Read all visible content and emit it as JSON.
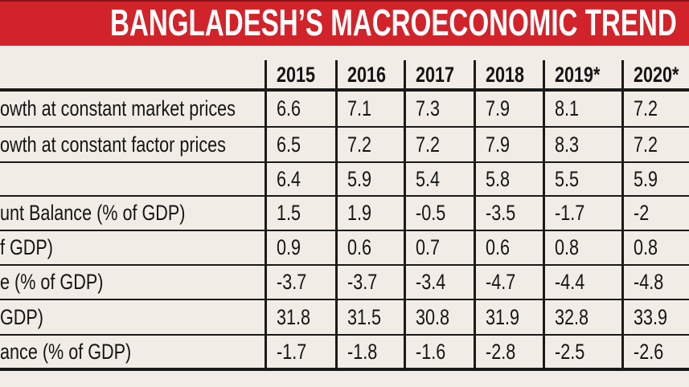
{
  "title": "BANGLADESH’S MACROECONOMIC TREND",
  "colors": {
    "banner": "#d2232a",
    "background": "#f1ede6",
    "text": "#151515"
  },
  "chart_data": {
    "type": "table",
    "columns": [
      "2015",
      "2016",
      "2017",
      "2018",
      "2019*",
      "2020*"
    ],
    "rows": [
      {
        "label": "owth at constant market prices",
        "values": [
          "6.6",
          "7.1",
          "7.3",
          "7.9",
          "8.1",
          "7.2"
        ]
      },
      {
        "label": "owth at constant factor prices",
        "values": [
          "6.5",
          "7.2",
          "7.2",
          "7.9",
          "8.3",
          "7.2"
        ]
      },
      {
        "label": "",
        "values": [
          "6.4",
          "5.9",
          "5.4",
          "5.8",
          "5.5",
          "5.9"
        ]
      },
      {
        "label": "unt Balance (% of GDP)",
        "values": [
          "1.5",
          "1.9",
          "-0.5",
          "-3.5",
          "-1.7",
          "-2"
        ]
      },
      {
        "label": "f GDP)",
        "values": [
          "0.9",
          "0.6",
          "0.7",
          "0.6",
          "0.8",
          "0.8"
        ]
      },
      {
        "label": "e (% of GDP)",
        "values": [
          "-3.7",
          "-3.7",
          "-3.4",
          "-4.7",
          "-4.4",
          "-4.8"
        ]
      },
      {
        "label": "GDP)",
        "values": [
          "31.8",
          "31.5",
          "30.8",
          "31.9",
          "32.8",
          "33.9"
        ]
      },
      {
        "label": "ance (% of GDP)",
        "values": [
          "-1.7",
          "-1.8",
          "-1.6",
          "-2.8",
          "-2.5",
          "-2.6"
        ]
      }
    ]
  }
}
